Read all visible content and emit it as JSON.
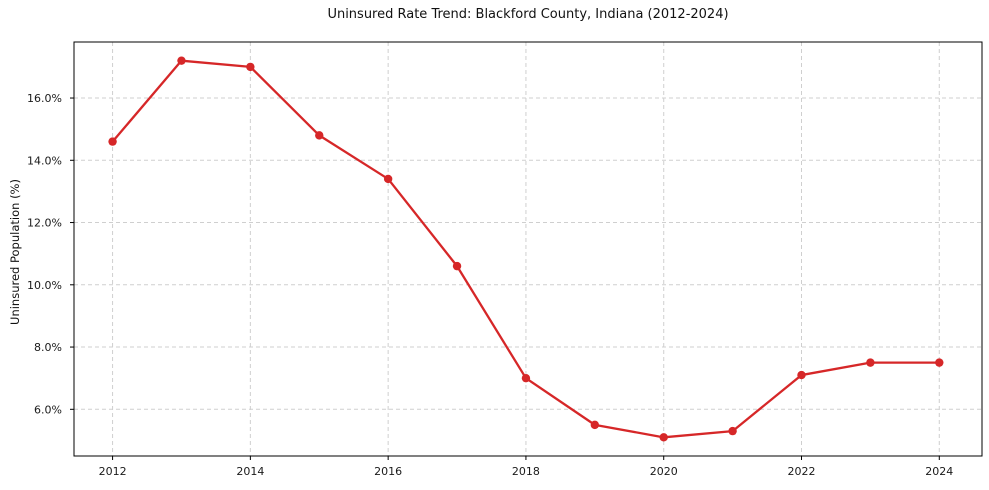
{
  "chart_data": {
    "type": "line",
    "title": "Uninsured Rate Trend: Blackford County, Indiana (2012-2024)",
    "xlabel": "",
    "ylabel": "Uninsured Population (%)",
    "x": [
      2012,
      2013,
      2014,
      2015,
      2016,
      2017,
      2018,
      2019,
      2020,
      2021,
      2022,
      2023,
      2024
    ],
    "series": [
      {
        "name": "Uninsured Rate",
        "values": [
          14.6,
          17.2,
          17.0,
          14.8,
          13.4,
          10.6,
          7.0,
          5.5,
          5.1,
          5.3,
          7.1,
          7.5,
          7.5
        ]
      }
    ],
    "x_tick_values": [
      2012,
      2014,
      2016,
      2018,
      2020,
      2022,
      2024
    ],
    "x_tick_labels": [
      "2012",
      "2014",
      "2016",
      "2018",
      "2020",
      "2022",
      "2024"
    ],
    "y_tick_values": [
      6,
      8,
      10,
      12,
      14,
      16
    ],
    "y_tick_labels": [
      "6.0%",
      "8.0%",
      "10.0%",
      "12.0%",
      "14.0%",
      "16.0%"
    ],
    "xlim": [
      2011.44,
      2024.62
    ],
    "ylim": [
      4.5,
      17.8
    ],
    "grid": true,
    "grid_style": "dashed",
    "legend": "none",
    "marker": "circle",
    "colors": {
      "line": "#d62728",
      "marker": "#d62728",
      "grid": "#cfcfcf",
      "axis": "#000000",
      "text": "#1a1a1a",
      "background": "#ffffff"
    }
  }
}
